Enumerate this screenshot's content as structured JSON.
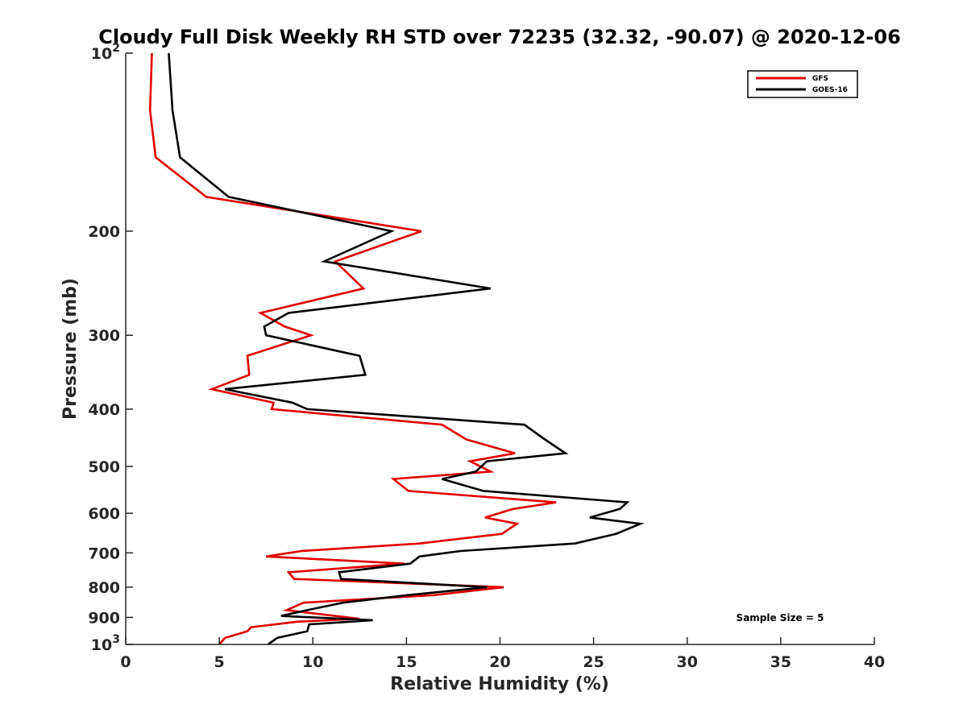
{
  "chart_data": {
    "type": "line",
    "title": "Cloudy Full Disk Weekly RH STD over 72235 (32.32, -90.07) @ 2020-12-06",
    "xlabel": "Relative Humidity (%)",
    "ylabel": "Pressure (mb)",
    "xlim": [
      0,
      40
    ],
    "ylim": [
      100,
      1000
    ],
    "yscale": "log",
    "y_reversed": true,
    "xticks": [
      0,
      5,
      10,
      15,
      20,
      25,
      30,
      35,
      40
    ],
    "yticks": [
      {
        "value": 100,
        "label": "10",
        "sup": "2"
      },
      {
        "value": 200,
        "label": "200",
        "sup": ""
      },
      {
        "value": 300,
        "label": "300",
        "sup": ""
      },
      {
        "value": 400,
        "label": "400",
        "sup": ""
      },
      {
        "value": 500,
        "label": "500",
        "sup": ""
      },
      {
        "value": 600,
        "label": "600",
        "sup": ""
      },
      {
        "value": 700,
        "label": "700",
        "sup": ""
      },
      {
        "value": 800,
        "label": "800",
        "sup": ""
      },
      {
        "value": 900,
        "label": "900",
        "sup": ""
      },
      {
        "value": 1000,
        "label": "10",
        "sup": "3"
      }
    ],
    "legend_position": "top-right",
    "annotation": "Sample Size = 5",
    "series": [
      {
        "name": "GFS",
        "color": "#e00000",
        "points": [
          [
            1.4,
            100
          ],
          [
            1.3,
            125
          ],
          [
            1.6,
            150
          ],
          [
            4.3,
            175
          ],
          [
            15.8,
            200
          ],
          [
            11.2,
            225
          ],
          [
            12.7,
            250
          ],
          [
            7.2,
            275
          ],
          [
            8.5,
            290
          ],
          [
            9.9,
            300
          ],
          [
            6.5,
            325
          ],
          [
            6.6,
            350
          ],
          [
            4.6,
            370
          ],
          [
            7.9,
            390
          ],
          [
            7.8,
            400
          ],
          [
            16.9,
            425
          ],
          [
            18.2,
            450
          ],
          [
            20.8,
            475
          ],
          [
            18.4,
            490
          ],
          [
            19.5,
            510
          ],
          [
            14.3,
            525
          ],
          [
            15.1,
            550
          ],
          [
            23.0,
            575
          ],
          [
            20.7,
            590
          ],
          [
            19.2,
            610
          ],
          [
            20.9,
            625
          ],
          [
            20.1,
            650
          ],
          [
            15.7,
            675
          ],
          [
            9.4,
            695
          ],
          [
            7.5,
            710
          ],
          [
            14.9,
            730
          ],
          [
            8.7,
            755
          ],
          [
            9.0,
            775
          ],
          [
            20.2,
            800
          ],
          [
            16.5,
            825
          ],
          [
            9.5,
            850
          ],
          [
            8.6,
            875
          ],
          [
            12.5,
            905
          ],
          [
            9.2,
            915
          ],
          [
            6.7,
            935
          ],
          [
            6.5,
            950
          ],
          [
            5.3,
            975
          ],
          [
            5.0,
            1000
          ]
        ]
      },
      {
        "name": "GOES-16",
        "color": "#000000",
        "points": [
          [
            2.3,
            100
          ],
          [
            2.5,
            125
          ],
          [
            2.9,
            150
          ],
          [
            5.5,
            175
          ],
          [
            14.2,
            200
          ],
          [
            10.6,
            225
          ],
          [
            19.5,
            250
          ],
          [
            8.7,
            275
          ],
          [
            7.4,
            290
          ],
          [
            7.5,
            300
          ],
          [
            12.5,
            325
          ],
          [
            12.8,
            350
          ],
          [
            5.3,
            370
          ],
          [
            8.9,
            390
          ],
          [
            9.7,
            400
          ],
          [
            21.3,
            425
          ],
          [
            22.4,
            450
          ],
          [
            23.5,
            475
          ],
          [
            19.3,
            490
          ],
          [
            18.7,
            510
          ],
          [
            16.9,
            525
          ],
          [
            19.1,
            550
          ],
          [
            26.8,
            575
          ],
          [
            26.4,
            590
          ],
          [
            24.8,
            610
          ],
          [
            27.5,
            625
          ],
          [
            26.2,
            650
          ],
          [
            24.0,
            675
          ],
          [
            17.9,
            695
          ],
          [
            15.7,
            710
          ],
          [
            15.2,
            730
          ],
          [
            11.4,
            755
          ],
          [
            11.5,
            775
          ],
          [
            19.3,
            800
          ],
          [
            15.1,
            825
          ],
          [
            11.6,
            850
          ],
          [
            9.7,
            875
          ],
          [
            8.3,
            895
          ],
          [
            13.2,
            910
          ],
          [
            9.8,
            925
          ],
          [
            9.7,
            950
          ],
          [
            8.1,
            975
          ],
          [
            7.6,
            1000
          ]
        ]
      }
    ]
  }
}
